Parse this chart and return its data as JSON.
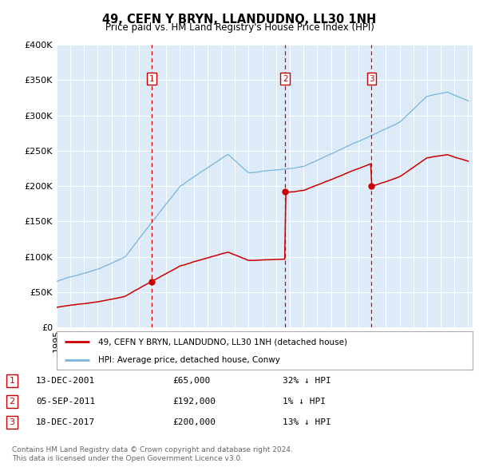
{
  "title": "49, CEFN Y BRYN, LLANDUDNO, LL30 1NH",
  "subtitle": "Price paid vs. HM Land Registry's House Price Index (HPI)",
  "ylim": [
    0,
    400000
  ],
  "xlim_start": 1995.0,
  "xlim_end": 2025.3,
  "bg_color": "#ddeaf7",
  "red_color": "#cc0000",
  "blue_color": "#7ab3d9",
  "transactions": [
    {
      "date_x": 2001.95,
      "price": 65000,
      "label": "1",
      "date_str": "13-DEC-2001",
      "price_str": "£65,000",
      "pct_str": "32% ↓ HPI"
    },
    {
      "date_x": 2011.67,
      "price": 192000,
      "label": "2",
      "date_str": "05-SEP-2011",
      "price_str": "£192,000",
      "pct_str": "1% ↓ HPI"
    },
    {
      "date_x": 2017.96,
      "price": 200000,
      "label": "3",
      "date_str": "18-DEC-2017",
      "price_str": "£200,000",
      "pct_str": "13% ↓ HPI"
    }
  ],
  "legend_line1": "49, CEFN Y BRYN, LLANDUDNO, LL30 1NH (detached house)",
  "legend_line2": "HPI: Average price, detached house, Conwy",
  "footer_line1": "Contains HM Land Registry data © Crown copyright and database right 2024.",
  "footer_line2": "This data is licensed under the Open Government Licence v3.0."
}
